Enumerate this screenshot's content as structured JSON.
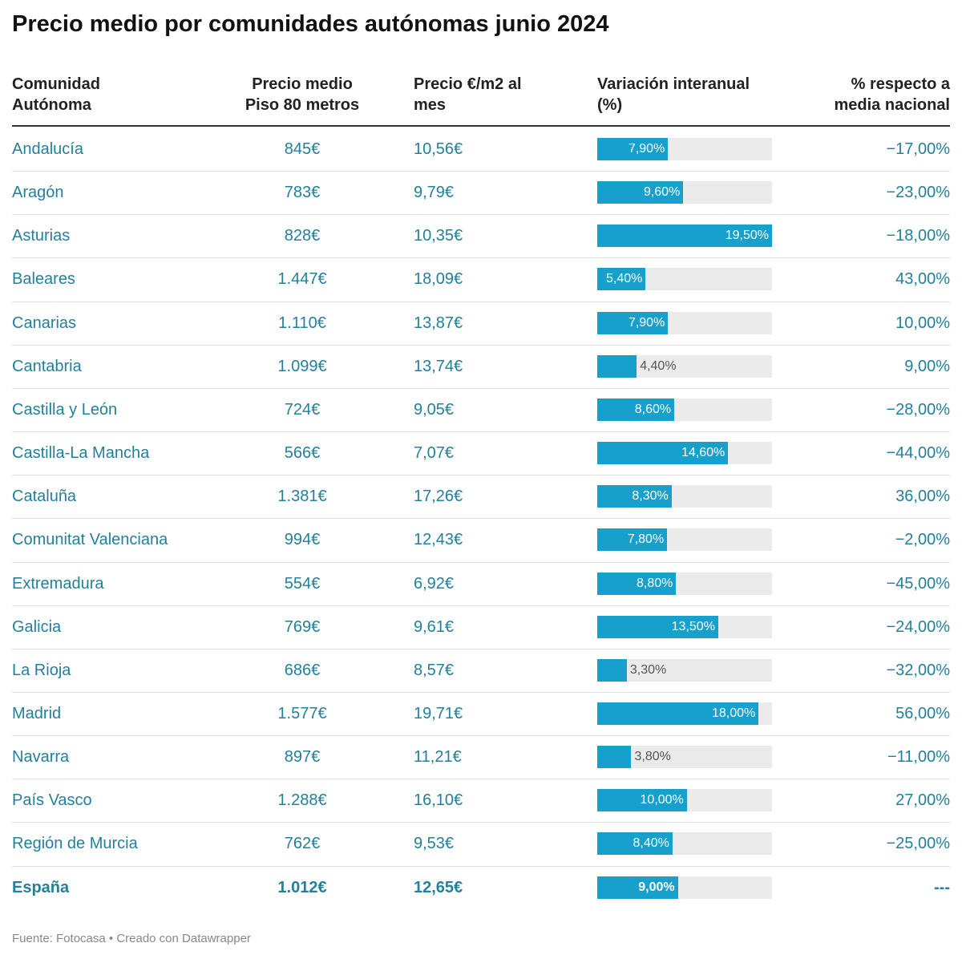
{
  "title": "Precio medio por comunidades autónomas junio 2024",
  "table": {
    "headers": [
      "Comunidad Autónoma",
      "Precio medio Piso 80 metros",
      "Precio €/m2 al mes",
      "Variación interanual (%)",
      "% respecto a media nacional"
    ],
    "bar_xlim": [
      0,
      19.5
    ],
    "rows": [
      [
        "Andalucía",
        "845€",
        "10,56€",
        {
          "value": 7.9,
          "label": "7,90%"
        },
        "−17,00%"
      ],
      [
        "Aragón",
        "783€",
        "9,79€",
        {
          "value": 9.6,
          "label": "9,60%"
        },
        "−23,00%"
      ],
      [
        "Asturias",
        "828€",
        "10,35€",
        {
          "value": 19.5,
          "label": "19,50%"
        },
        "−18,00%"
      ],
      [
        "Baleares",
        "1.447€",
        "18,09€",
        {
          "value": 5.4,
          "label": "5,40%"
        },
        "43,00%"
      ],
      [
        "Canarias",
        "1.110€",
        "13,87€",
        {
          "value": 7.9,
          "label": "7,90%"
        },
        "10,00%"
      ],
      [
        "Cantabria",
        "1.099€",
        "13,74€",
        {
          "value": 4.4,
          "label": "4,40%"
        },
        "9,00%"
      ],
      [
        "Castilla y León",
        "724€",
        "9,05€",
        {
          "value": 8.6,
          "label": "8,60%"
        },
        "−28,00%"
      ],
      [
        "Castilla-La Mancha",
        "566€",
        "7,07€",
        {
          "value": 14.6,
          "label": "14,60%"
        },
        "−44,00%"
      ],
      [
        "Cataluña",
        "1.381€",
        "17,26€",
        {
          "value": 8.3,
          "label": "8,30%"
        },
        "36,00%"
      ],
      [
        "Comunitat Valenciana",
        "994€",
        "12,43€",
        {
          "value": 7.8,
          "label": "7,80%"
        },
        "−2,00%"
      ],
      [
        "Extremadura",
        "554€",
        "6,92€",
        {
          "value": 8.8,
          "label": "8,80%"
        },
        "−45,00%"
      ],
      [
        "Galicia",
        "769€",
        "9,61€",
        {
          "value": 13.5,
          "label": "13,50%"
        },
        "−24,00%"
      ],
      [
        "La Rioja",
        "686€",
        "8,57€",
        {
          "value": 3.3,
          "label": "3,30%"
        },
        "−32,00%"
      ],
      [
        "Madrid",
        "1.577€",
        "19,71€",
        {
          "value": 18.0,
          "label": "18,00%"
        },
        "56,00%"
      ],
      [
        "Navarra",
        "897€",
        "11,21€",
        {
          "value": 3.8,
          "label": "3,80%"
        },
        "−11,00%"
      ],
      [
        "País Vasco",
        "1.288€",
        "16,10€",
        {
          "value": 10.0,
          "label": "10,00%"
        },
        "27,00%"
      ],
      [
        "Región de Murcia",
        "762€",
        "9,53€",
        {
          "value": 8.4,
          "label": "8,40%"
        },
        "−25,00%"
      ],
      [
        "España",
        "1.012€",
        "12,65€",
        {
          "value": 9.0,
          "label": "9,00%"
        },
        "---"
      ]
    ]
  },
  "footer": "Fuente: Fotocasa • Creado con Datawrapper"
}
